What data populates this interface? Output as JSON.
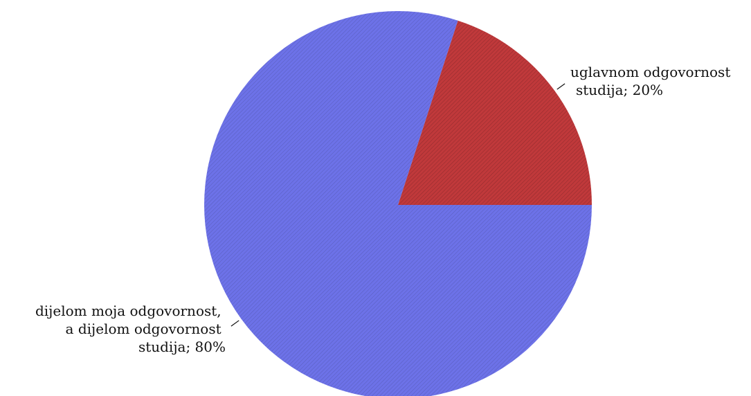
{
  "chart_data": {
    "type": "pie",
    "slices": [
      {
        "label_lines": [
          "uglavnom odgovornost",
          "studija; 20%"
        ],
        "value": 20,
        "color": "#c0393b",
        "label_side": "right"
      },
      {
        "label_lines": [
          "dijelom moja odgovornost,",
          "a dijelom odgovornost",
          "studija; 80%"
        ],
        "value": 80,
        "color": "#6d72e8",
        "label_side": "left"
      }
    ],
    "start_angle_deg": 0,
    "direction": "counterclockwise",
    "hatched_fill": true
  }
}
